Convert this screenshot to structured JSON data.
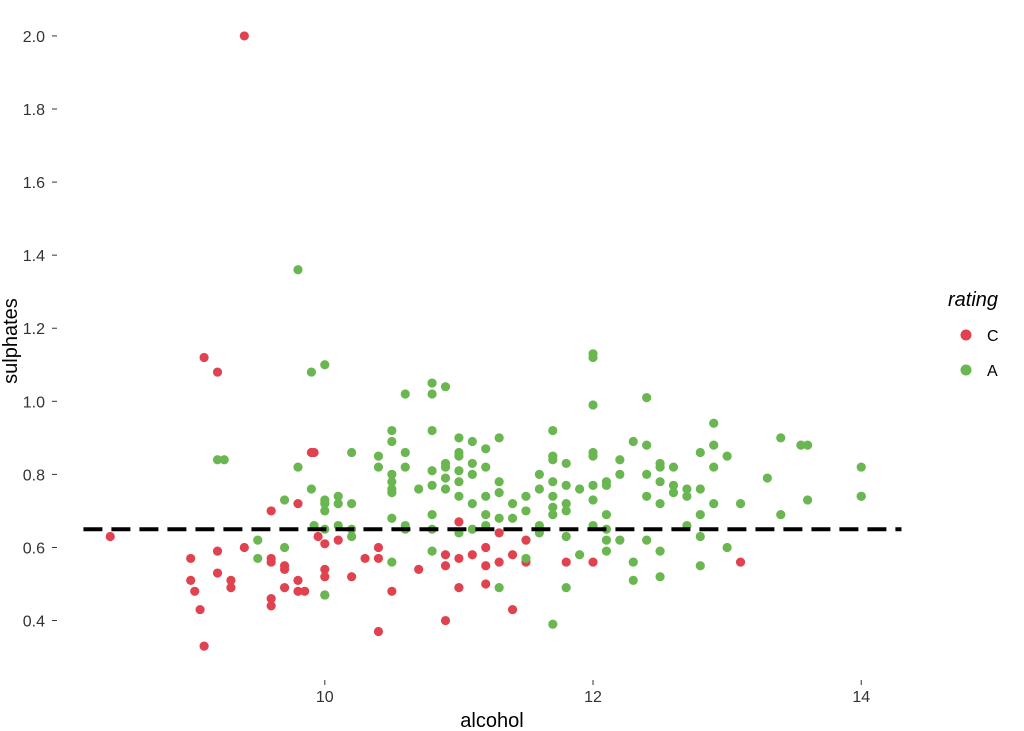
{
  "chart_data": {
    "type": "scatter",
    "title": "",
    "xlabel": "alcohol",
    "ylabel": "sulphates",
    "xlim": [
      8.1,
      14.55
    ],
    "ylim": [
      0.24,
      2.06
    ],
    "x_ticks": [
      10,
      12,
      14
    ],
    "y_ticks": [
      0.4,
      0.6,
      0.8,
      1.0,
      1.2,
      1.4,
      1.6,
      1.8,
      2.0
    ],
    "x_tick_labels": [
      "10",
      "12",
      "14"
    ],
    "y_tick_labels": [
      "0.4",
      "0.6",
      "0.8",
      "1.0",
      "1.2",
      "1.4",
      "1.6",
      "1.8",
      "2.0"
    ],
    "grid": false,
    "legend": {
      "title": "rating",
      "position": "right"
    },
    "reference_line": {
      "y": 0.65,
      "x_range": [
        8.2,
        14.3
      ],
      "style": "dashed",
      "color": "#000000"
    },
    "series": [
      {
        "name": "C",
        "color": "#E0434F",
        "points": [
          [
            8.4,
            0.63
          ],
          [
            9.0,
            0.57
          ],
          [
            9.0,
            0.51
          ],
          [
            9.03,
            0.48
          ],
          [
            9.07,
            0.43
          ],
          [
            9.1,
            0.33
          ],
          [
            9.1,
            1.12
          ],
          [
            9.2,
            1.08
          ],
          [
            9.2,
            0.59
          ],
          [
            9.2,
            0.53
          ],
          [
            9.3,
            0.51
          ],
          [
            9.3,
            0.49
          ],
          [
            9.4,
            2.0
          ],
          [
            9.4,
            0.6
          ],
          [
            9.6,
            0.7
          ],
          [
            9.6,
            0.57
          ],
          [
            9.6,
            0.56
          ],
          [
            9.6,
            0.46
          ],
          [
            9.6,
            0.44
          ],
          [
            9.7,
            0.55
          ],
          [
            9.7,
            0.54
          ],
          [
            9.7,
            0.49
          ],
          [
            9.8,
            0.72
          ],
          [
            9.8,
            0.51
          ],
          [
            9.8,
            0.48
          ],
          [
            9.85,
            0.48
          ],
          [
            9.9,
            0.86
          ],
          [
            9.92,
            0.86
          ],
          [
            9.95,
            0.63
          ],
          [
            10.0,
            0.61
          ],
          [
            10.0,
            0.54
          ],
          [
            10.0,
            0.52
          ],
          [
            10.0,
            0.47
          ],
          [
            10.1,
            0.62
          ],
          [
            10.2,
            0.52
          ],
          [
            10.3,
            0.57
          ],
          [
            10.4,
            0.6
          ],
          [
            10.4,
            0.57
          ],
          [
            10.4,
            0.37
          ],
          [
            10.5,
            0.48
          ],
          [
            10.7,
            0.54
          ],
          [
            10.9,
            0.58
          ],
          [
            10.9,
            0.55
          ],
          [
            10.9,
            0.4
          ],
          [
            11.0,
            0.67
          ],
          [
            11.0,
            0.57
          ],
          [
            11.0,
            0.49
          ],
          [
            11.1,
            0.58
          ],
          [
            11.2,
            0.6
          ],
          [
            11.2,
            0.55
          ],
          [
            11.2,
            0.5
          ],
          [
            11.3,
            0.64
          ],
          [
            11.3,
            0.56
          ],
          [
            11.4,
            0.58
          ],
          [
            11.4,
            0.43
          ],
          [
            11.5,
            0.62
          ],
          [
            11.5,
            0.56
          ],
          [
            11.8,
            0.56
          ],
          [
            12.0,
            0.56
          ],
          [
            13.1,
            0.56
          ]
        ]
      },
      {
        "name": "A",
        "color": "#6AB650",
        "points": [
          [
            9.2,
            0.84
          ],
          [
            9.25,
            0.84
          ],
          [
            9.5,
            0.62
          ],
          [
            9.5,
            0.57
          ],
          [
            9.7,
            0.73
          ],
          [
            9.7,
            0.6
          ],
          [
            9.8,
            1.36
          ],
          [
            9.8,
            0.82
          ],
          [
            9.9,
            1.08
          ],
          [
            9.9,
            0.76
          ],
          [
            9.92,
            0.66
          ],
          [
            10.0,
            1.1
          ],
          [
            10.0,
            0.73
          ],
          [
            10.0,
            0.72
          ],
          [
            10.0,
            0.7
          ],
          [
            10.0,
            0.65
          ],
          [
            10.0,
            0.47
          ],
          [
            10.1,
            0.74
          ],
          [
            10.1,
            0.72
          ],
          [
            10.1,
            0.66
          ],
          [
            10.2,
            0.86
          ],
          [
            10.2,
            0.72
          ],
          [
            10.2,
            0.65
          ],
          [
            10.2,
            0.63
          ],
          [
            10.4,
            0.85
          ],
          [
            10.4,
            0.82
          ],
          [
            10.5,
            0.92
          ],
          [
            10.5,
            0.89
          ],
          [
            10.5,
            0.8
          ],
          [
            10.5,
            0.78
          ],
          [
            10.5,
            0.76
          ],
          [
            10.5,
            0.75
          ],
          [
            10.5,
            0.68
          ],
          [
            10.5,
            0.56
          ],
          [
            10.6,
            1.02
          ],
          [
            10.6,
            0.86
          ],
          [
            10.6,
            0.82
          ],
          [
            10.6,
            0.66
          ],
          [
            10.6,
            0.65
          ],
          [
            10.7,
            0.76
          ],
          [
            10.8,
            1.05
          ],
          [
            10.8,
            1.02
          ],
          [
            10.8,
            0.92
          ],
          [
            10.8,
            0.81
          ],
          [
            10.8,
            0.77
          ],
          [
            10.8,
            0.69
          ],
          [
            10.8,
            0.65
          ],
          [
            10.8,
            0.59
          ],
          [
            10.9,
            1.04
          ],
          [
            10.9,
            0.83
          ],
          [
            10.9,
            0.82
          ],
          [
            10.9,
            0.79
          ],
          [
            10.9,
            0.76
          ],
          [
            11.0,
            0.9
          ],
          [
            11.0,
            0.86
          ],
          [
            11.0,
            0.85
          ],
          [
            11.0,
            0.81
          ],
          [
            11.0,
            0.78
          ],
          [
            11.0,
            0.74
          ],
          [
            11.0,
            0.64
          ],
          [
            11.1,
            0.89
          ],
          [
            11.1,
            0.83
          ],
          [
            11.1,
            0.8
          ],
          [
            11.1,
            0.72
          ],
          [
            11.1,
            0.65
          ],
          [
            11.2,
            0.87
          ],
          [
            11.2,
            0.82
          ],
          [
            11.2,
            0.74
          ],
          [
            11.2,
            0.69
          ],
          [
            11.2,
            0.66
          ],
          [
            11.3,
            0.9
          ],
          [
            11.3,
            0.78
          ],
          [
            11.3,
            0.75
          ],
          [
            11.3,
            0.68
          ],
          [
            11.3,
            0.49
          ],
          [
            11.4,
            0.72
          ],
          [
            11.4,
            0.68
          ],
          [
            11.5,
            0.74
          ],
          [
            11.5,
            0.7
          ],
          [
            11.5,
            0.57
          ],
          [
            11.6,
            0.8
          ],
          [
            11.6,
            0.76
          ],
          [
            11.6,
            0.66
          ],
          [
            11.6,
            0.64
          ],
          [
            11.7,
            0.92
          ],
          [
            11.7,
            0.85
          ],
          [
            11.7,
            0.84
          ],
          [
            11.7,
            0.78
          ],
          [
            11.7,
            0.74
          ],
          [
            11.7,
            0.71
          ],
          [
            11.7,
            0.69
          ],
          [
            11.7,
            0.39
          ],
          [
            11.8,
            0.83
          ],
          [
            11.8,
            0.77
          ],
          [
            11.8,
            0.72
          ],
          [
            11.8,
            0.7
          ],
          [
            11.8,
            0.63
          ],
          [
            11.8,
            0.49
          ],
          [
            11.9,
            0.76
          ],
          [
            11.9,
            0.58
          ],
          [
            12.0,
            1.13
          ],
          [
            12.0,
            1.12
          ],
          [
            12.0,
            0.99
          ],
          [
            12.0,
            0.86
          ],
          [
            12.0,
            0.85
          ],
          [
            12.0,
            0.77
          ],
          [
            12.0,
            0.73
          ],
          [
            12.0,
            0.66
          ],
          [
            12.1,
            0.78
          ],
          [
            12.1,
            0.77
          ],
          [
            12.1,
            0.69
          ],
          [
            12.1,
            0.65
          ],
          [
            12.1,
            0.62
          ],
          [
            12.1,
            0.59
          ],
          [
            12.2,
            0.84
          ],
          [
            12.2,
            0.8
          ],
          [
            12.2,
            0.62
          ],
          [
            12.3,
            0.89
          ],
          [
            12.3,
            0.56
          ],
          [
            12.3,
            0.51
          ],
          [
            12.4,
            1.01
          ],
          [
            12.4,
            0.88
          ],
          [
            12.4,
            0.8
          ],
          [
            12.4,
            0.74
          ],
          [
            12.4,
            0.62
          ],
          [
            12.5,
            0.83
          ],
          [
            12.5,
            0.82
          ],
          [
            12.5,
            0.78
          ],
          [
            12.5,
            0.72
          ],
          [
            12.5,
            0.59
          ],
          [
            12.5,
            0.52
          ],
          [
            12.6,
            0.82
          ],
          [
            12.6,
            0.77
          ],
          [
            12.6,
            0.75
          ],
          [
            12.7,
            0.76
          ],
          [
            12.7,
            0.74
          ],
          [
            12.7,
            0.66
          ],
          [
            12.8,
            0.86
          ],
          [
            12.8,
            0.76
          ],
          [
            12.8,
            0.69
          ],
          [
            12.8,
            0.63
          ],
          [
            12.8,
            0.55
          ],
          [
            12.9,
            0.94
          ],
          [
            12.9,
            0.88
          ],
          [
            12.9,
            0.82
          ],
          [
            12.9,
            0.72
          ],
          [
            13.0,
            0.85
          ],
          [
            13.0,
            0.6
          ],
          [
            13.1,
            0.72
          ],
          [
            13.3,
            0.79
          ],
          [
            13.4,
            0.9
          ],
          [
            13.4,
            0.69
          ],
          [
            13.55,
            0.88
          ],
          [
            13.6,
            0.88
          ],
          [
            13.6,
            0.73
          ],
          [
            14.0,
            0.82
          ],
          [
            14.0,
            0.74
          ],
          [
            14.0,
            0.74
          ]
        ]
      }
    ]
  }
}
